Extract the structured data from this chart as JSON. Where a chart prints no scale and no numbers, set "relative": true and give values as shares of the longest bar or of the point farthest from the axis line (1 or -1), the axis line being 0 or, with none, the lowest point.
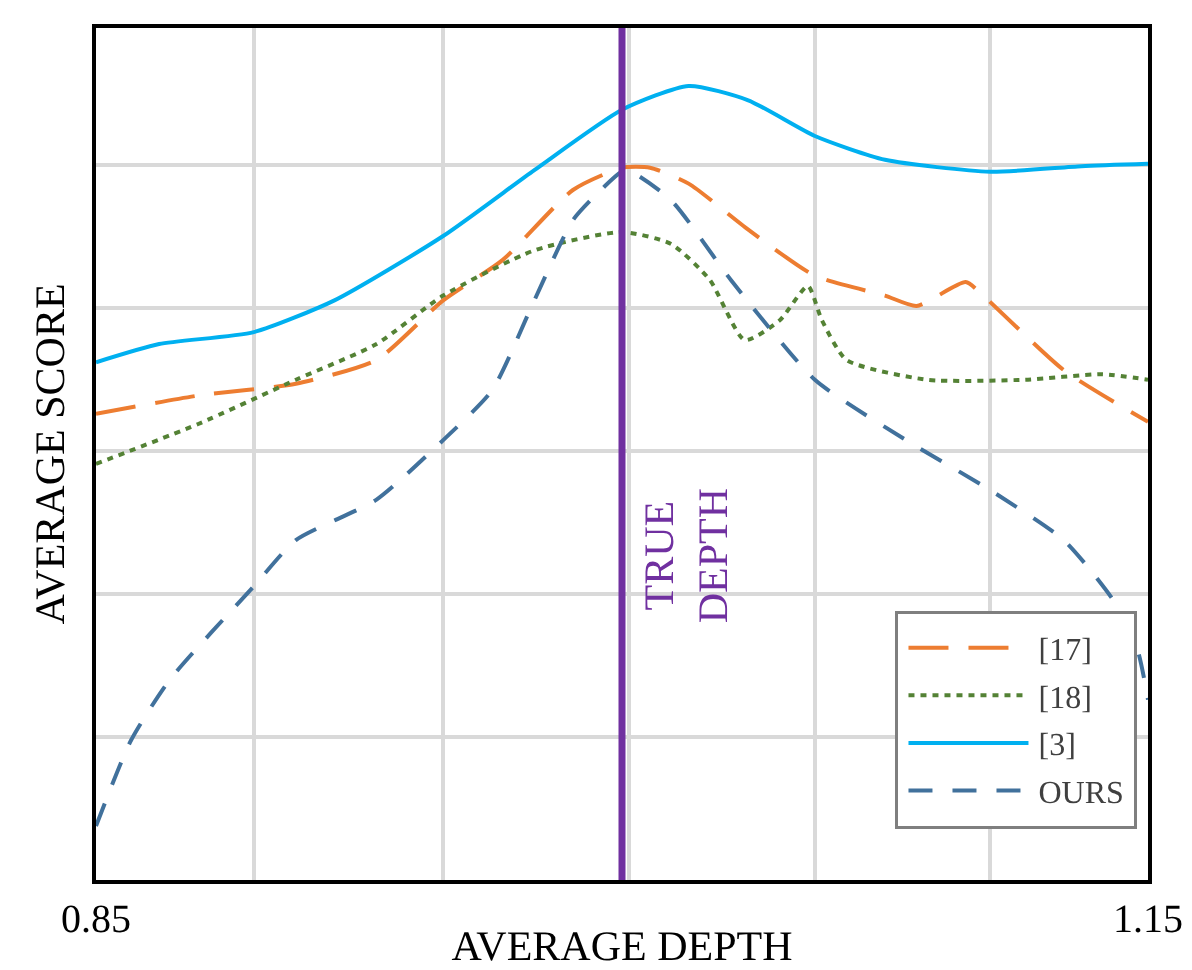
{
  "chart_data": {
    "type": "line",
    "relative": true,
    "xlabel": "AVERAGE DEPTH",
    "ylabel": "AVERAGE SCORE",
    "xlim": [
      0.85,
      1.15
    ],
    "xticks": [
      0.85,
      {
        "value": 0.895,
        "label": null
      },
      {
        "value": 0.949,
        "label": null
      },
      {
        "value": 1.002,
        "label": null
      },
      {
        "value": 1.055,
        "label": null
      },
      {
        "value": 1.105,
        "label": null
      },
      1.15
    ],
    "grid": true,
    "legend": "bottom right",
    "marker": "none",
    "ref_lines": [
      {
        "axis": "x",
        "value": 1.0,
        "label": "TRUE DEPTH",
        "color": "#7030a0",
        "line_style": "solid"
      }
    ],
    "series": [
      {
        "name": "[17]",
        "color": "#ed7d31",
        "line_style": "dashed",
        "x": [
          0.85,
          0.879,
          0.907,
          0.93,
          0.949,
          0.966,
          0.986,
          1.0,
          1.008,
          1.019,
          1.036,
          1.055,
          1.075,
          1.084,
          1.098,
          1.103,
          1.126,
          1.15
        ],
        "values": [
          0.587,
          0.61,
          0.625,
          0.655,
          0.73,
          0.781,
          0.869,
          0.897,
          0.897,
          0.877,
          0.819,
          0.761,
          0.736,
          0.723,
          0.753,
          0.736,
          0.642,
          0.577
        ]
      },
      {
        "name": "[18]",
        "color": "#548235",
        "line_style": "dotted",
        "x": [
          0.85,
          0.879,
          0.907,
          0.93,
          0.949,
          0.975,
          1.0,
          1.014,
          1.025,
          1.035,
          1.045,
          1.053,
          1.057,
          1.064,
          1.087,
          1.115,
          1.137,
          1.15
        ],
        "values": [
          0.524,
          0.574,
          0.63,
          0.675,
          0.736,
          0.793,
          0.816,
          0.801,
          0.756,
          0.68,
          0.705,
          0.748,
          0.705,
          0.655,
          0.63,
          0.63,
          0.637,
          0.63
        ]
      },
      {
        "name": "[3]",
        "color": "#00b0f0",
        "line_style": "solid",
        "x": [
          0.85,
          0.868,
          0.895,
          0.918,
          0.949,
          0.975,
          1.0,
          1.019,
          1.036,
          1.055,
          1.075,
          1.105,
          1.131,
          1.15
        ],
        "values": [
          0.652,
          0.675,
          0.69,
          0.73,
          0.811,
          0.894,
          0.97,
          1.0,
          0.982,
          0.937,
          0.907,
          0.892,
          0.899,
          0.902
        ]
      },
      {
        "name": "OURS",
        "color": "#41719c",
        "line_style": "dashed",
        "x": [
          0.85,
          0.86,
          0.871,
          0.895,
          0.907,
          0.93,
          0.949,
          0.963,
          0.975,
          0.986,
          0.994,
          1.001,
          1.014,
          1.031,
          1.055,
          1.081,
          1.105,
          1.126,
          1.14,
          1.147,
          1.15
        ],
        "values": [
          0.068,
          0.176,
          0.252,
          0.37,
          0.428,
          0.479,
          0.554,
          0.617,
          0.73,
          0.831,
          0.869,
          0.894,
          0.856,
          0.756,
          0.63,
          0.554,
          0.491,
          0.428,
          0.353,
          0.29,
          0.227
        ]
      }
    ]
  }
}
